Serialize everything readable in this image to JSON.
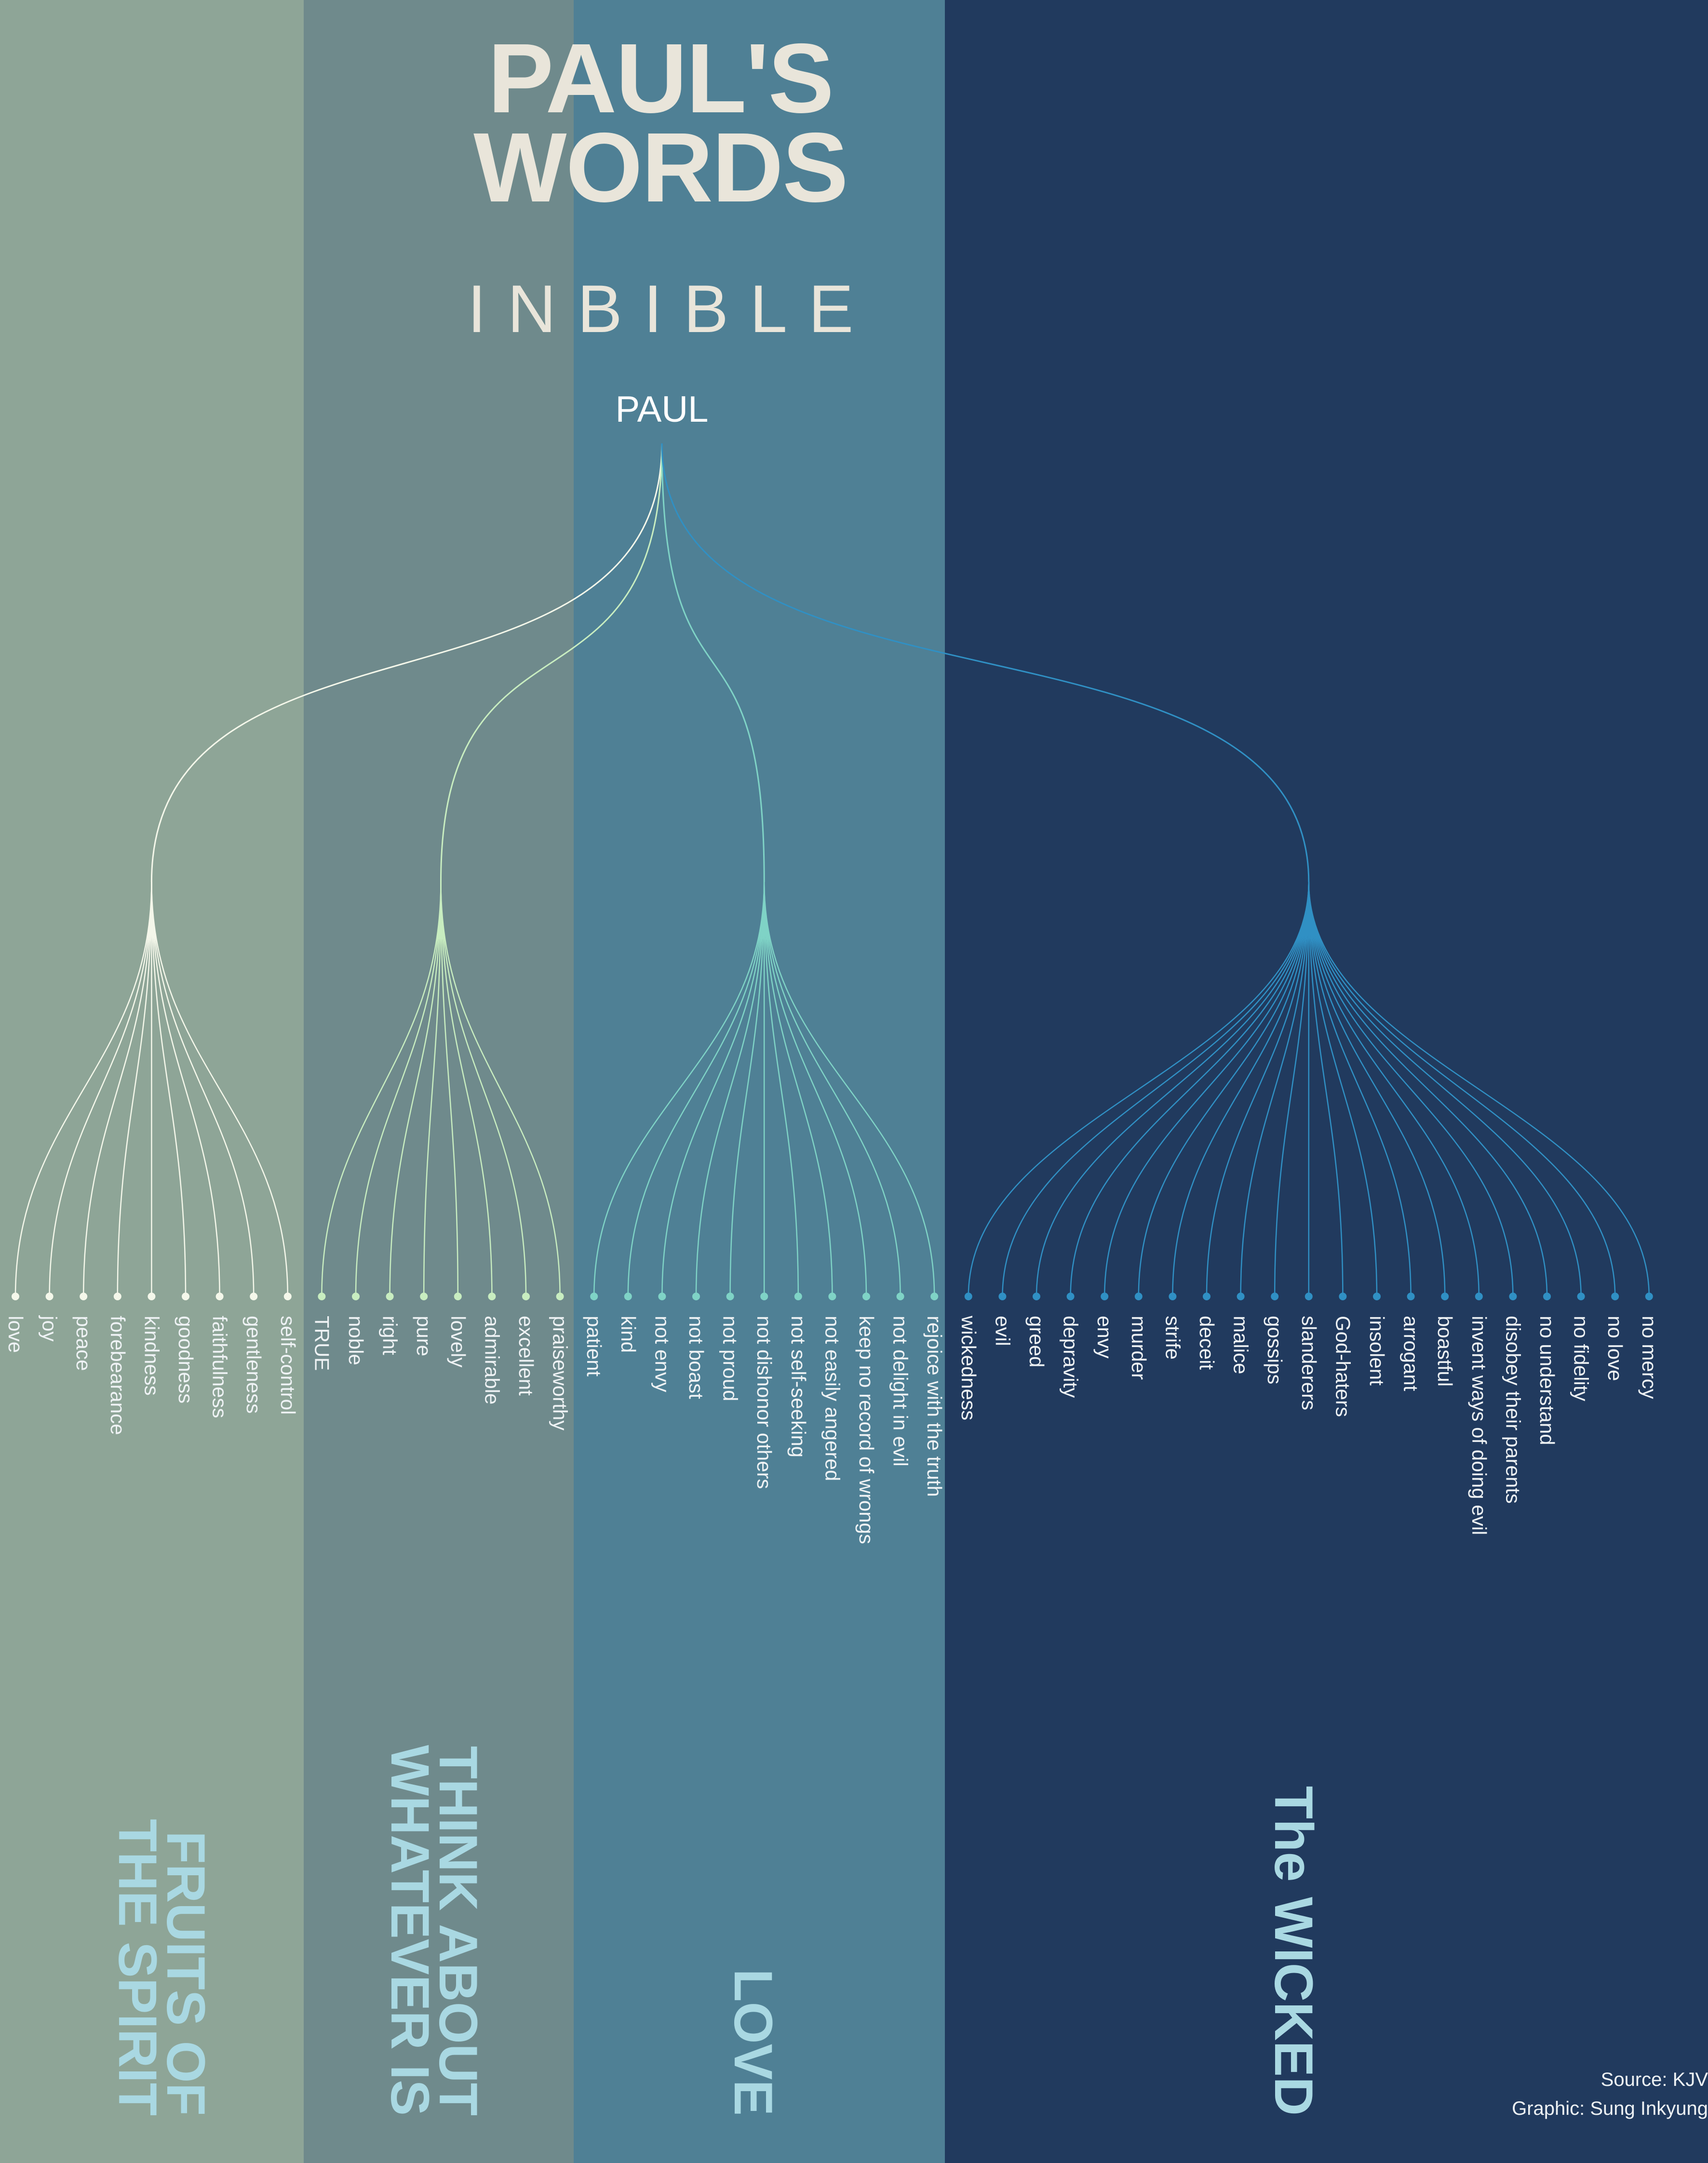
{
  "title": "PAUL'S\nWORDS",
  "subtitle": "INBIBLE",
  "root": "PAUL",
  "groups": [
    {
      "name": "FRUITS OF\nTHE SPIRIT",
      "color": "#f4f7ea",
      "band_color": "#8ea597",
      "items": [
        "love",
        "joy",
        "peace",
        "forebearance",
        "kindness",
        "goodness",
        "faithfulness",
        "gentleness",
        "self-control"
      ]
    },
    {
      "name": "THINK ABOUT\nWHATEVER IS",
      "color": "#c8edc0",
      "band_color": "#6f8a8c",
      "items": [
        "TRUE",
        "noble",
        "right",
        "pure",
        "lovely",
        "admirable",
        "excellent",
        "praiseworthy"
      ]
    },
    {
      "name": "LOVE",
      "color": "#7fd3c6",
      "band_color": "#4f8095",
      "items": [
        "patient",
        "kind",
        "not envy",
        "not boast",
        "not proud",
        "not dishonor others",
        "not self-seeking",
        "not easily angered",
        "keep no record of wrongs",
        "not delight in evil",
        "rejoice with the truth"
      ]
    },
    {
      "name": "The WICKED",
      "color": "#3090c4",
      "band_color": "#213a5e",
      "items": [
        "wickedness",
        "evil",
        "greed",
        "depravity",
        "envy",
        "murder",
        "strife",
        "deceit",
        "malice",
        "gossips",
        "slanderers",
        "God-haters",
        "insolent",
        "arrogant",
        "boastful",
        "invent ways of doing evil",
        "disobey their parents",
        "no understand",
        "no fidelity",
        "no love",
        "no mercy"
      ]
    }
  ],
  "credits": {
    "source": "Source: KJV",
    "graphic": "Graphic: Sung Inkyung"
  },
  "colors": {
    "title": "#e9e5da",
    "leaf_text": "#eef2f4",
    "group_label": "#a9d8e2"
  }
}
